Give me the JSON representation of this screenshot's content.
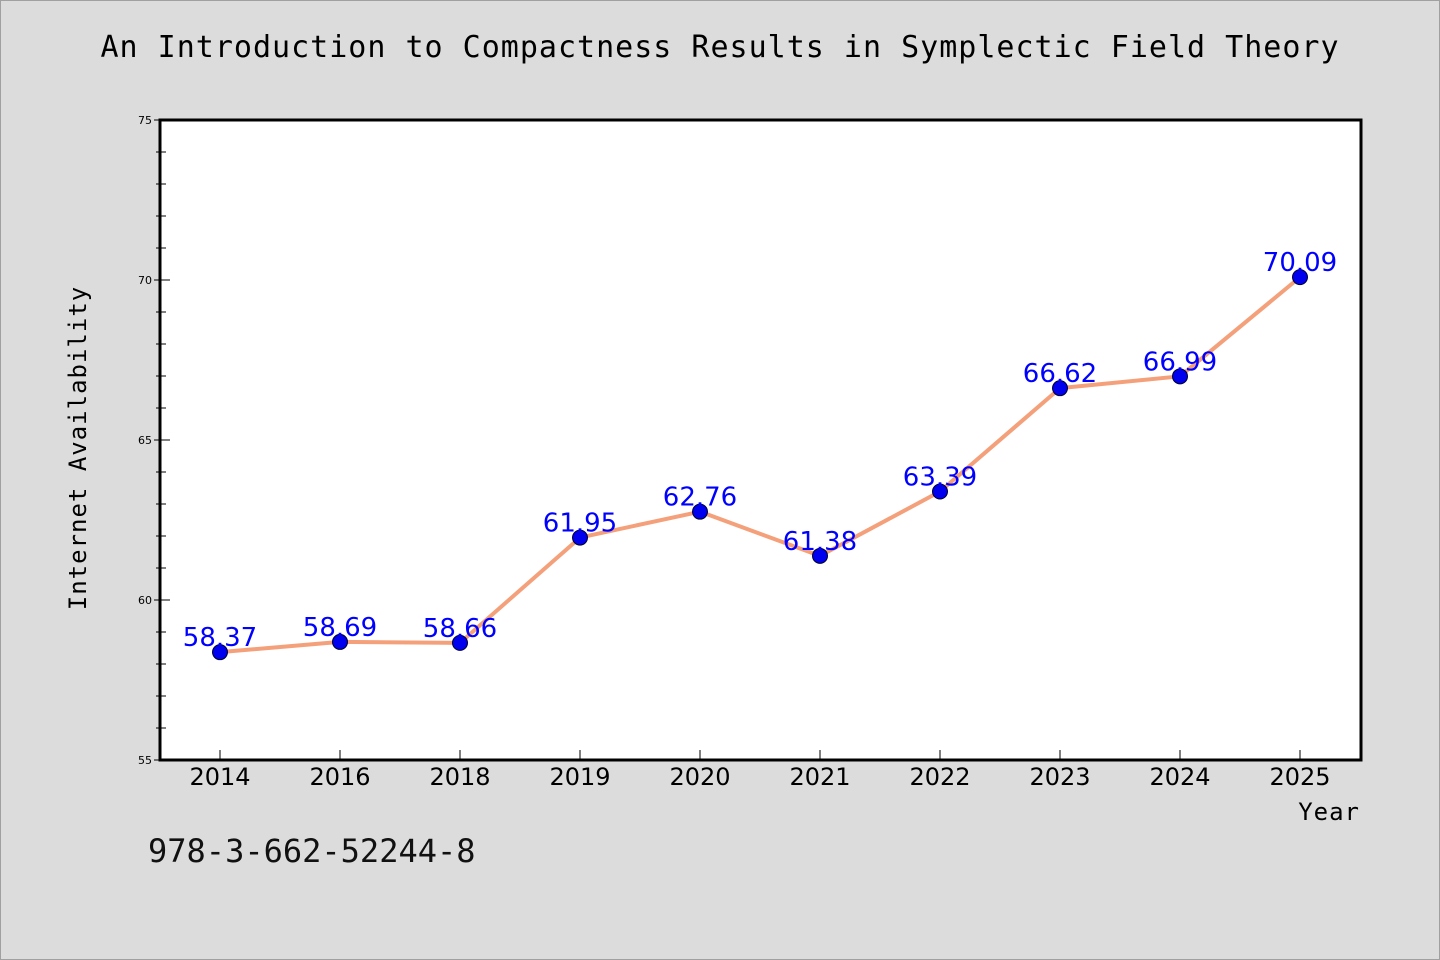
{
  "title": "An Introduction to Compactness Results in Symplectic Field Theory",
  "footer_text": "978-3-662-52244-8",
  "colors": {
    "background": "#dcdcdc",
    "plot_background": "#ffffff",
    "line": "#f4a07a",
    "marker": "#0000ee",
    "label": "#0000ff"
  },
  "chart_data": {
    "type": "line",
    "xlabel": "Year",
    "ylabel": "Internet Availability",
    "ylim": [
      55,
      75
    ],
    "yticks": [
      55,
      60,
      65,
      70,
      75
    ],
    "grid": false,
    "categories": [
      "2014",
      "2016",
      "2018",
      "2019",
      "2020",
      "2021",
      "2022",
      "2023",
      "2024",
      "2025"
    ],
    "series": [
      {
        "values": [
          58.37,
          58.69,
          58.66,
          61.95,
          62.76,
          61.38,
          63.39,
          66.62,
          66.99,
          70.09
        ],
        "labels": [
          "58.37",
          "58.69",
          "58.66",
          "61.95",
          "62.76",
          "61.38",
          "63.39",
          "66.62",
          "66.99",
          "70.09"
        ]
      }
    ]
  }
}
